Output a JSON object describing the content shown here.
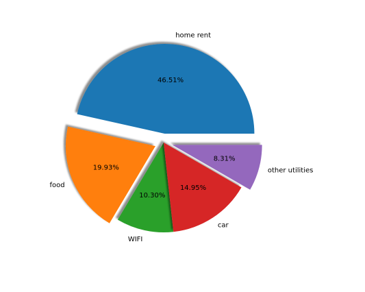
{
  "chart_data": {
    "type": "pie",
    "title": "",
    "categories": [
      "home rent",
      "food",
      "WIFI",
      "car",
      "other utilities"
    ],
    "values": [
      46.51,
      19.93,
      10.3,
      14.95,
      8.31
    ],
    "percent_labels": [
      "46.51%",
      "19.93%",
      "10.30%",
      "14.95%",
      "8.31%"
    ],
    "colors": [
      "#1f77b4",
      "#ff7f0e",
      "#2ca02c",
      "#d62728",
      "#9467bd"
    ],
    "exploded": [
      true,
      true,
      false,
      false,
      true
    ],
    "shadow": true,
    "legend": "none",
    "start_angle_deg": 0,
    "direction": "counterclockwise"
  }
}
